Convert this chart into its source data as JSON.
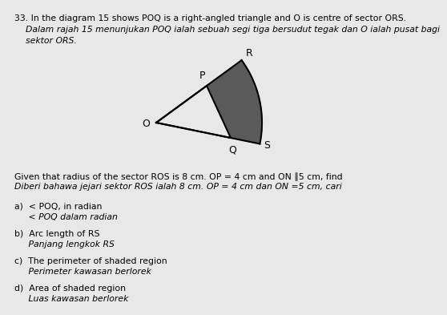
{
  "title_en": "33. In the diagram 15 shows POQ is a right-angled triangle and O is centre of sector ORS.",
  "title_my": "    Dalam rajah 15 menunjukan POQ ialah sebuah segi tiga bersudut tegak dan O ialah pusat bagi\n    sektor ORS.",
  "given_en": "Given that radius of the sector ROS is 8 cm. OP = 4 cm and ON ∥5 cm, find",
  "given_my": "Diberi bahawa jejari sektor ROS ialah 8 cm. OP = 4 cm dan ON =5 cm, cari",
  "part_a_en": "a)  < POQ, in radian",
  "part_a_my": "     < POQ dalam radian",
  "part_b_en": "b)  Arc length of RS",
  "part_b_my": "     Panjang lengkok RS",
  "part_c_en": "c)  The perimeter of shaded region",
  "part_c_my": "     Perimeter kawasan berlorek",
  "part_d_en": "d)  Area of shaded region",
  "part_d_my": "     Luas kawasan berlorek",
  "bg_color": "#e8e8e8",
  "shaded_color": "#5a5a5a",
  "line_color": "#000000",
  "text_color": "#000000"
}
